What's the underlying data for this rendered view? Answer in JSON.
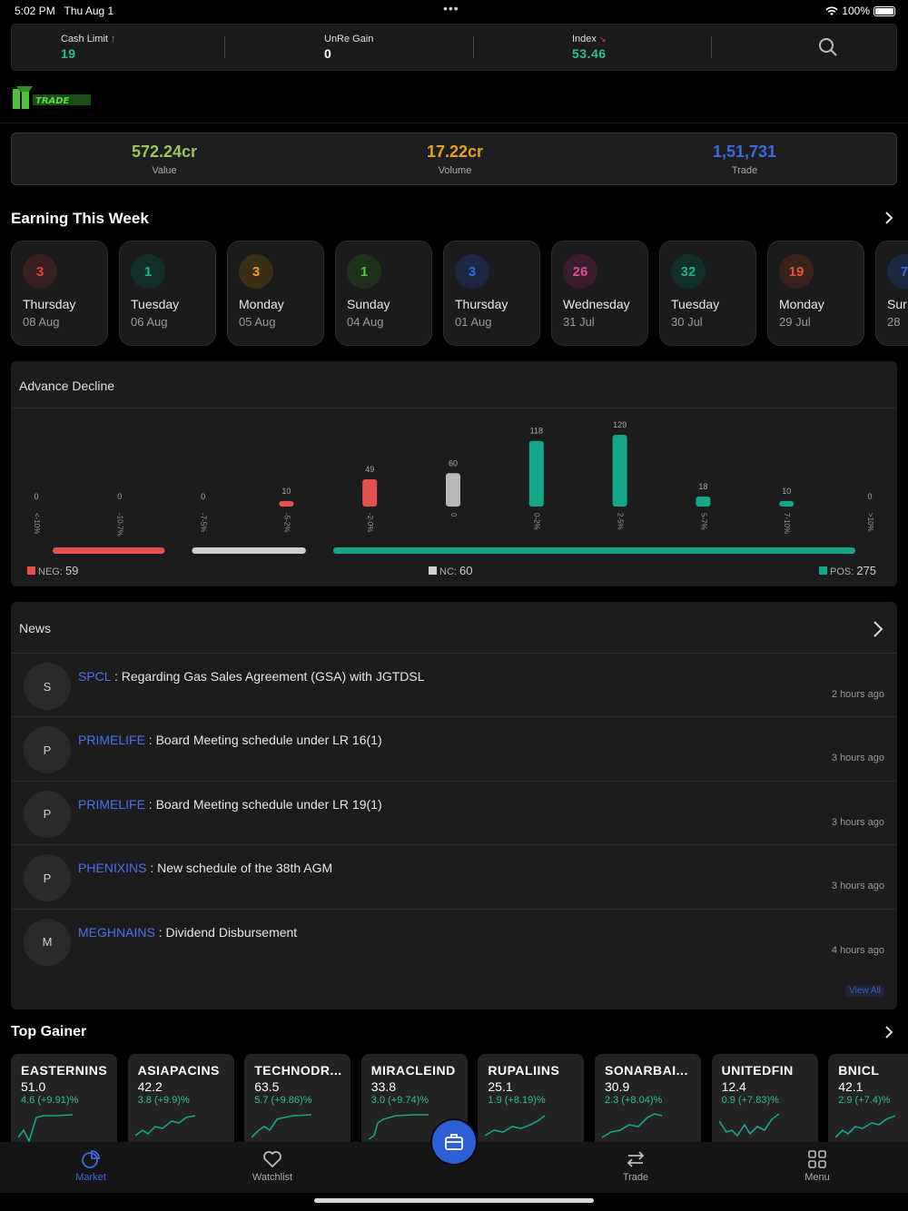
{
  "status": {
    "time": "5:02 PM",
    "date": "Thu Aug 1",
    "battery": "100%"
  },
  "topbar": {
    "cash_limit_label": "Cash Limit",
    "cash_limit_value": "19",
    "unre_gain_label": "UnRe Gain",
    "unre_gain_value": "0",
    "index_label": "Index",
    "index_value": "53.46"
  },
  "logo_text": "TRADE",
  "stats": {
    "value": "572.24cr",
    "value_label": "Value",
    "volume": "17.22cr",
    "volume_label": "Volume",
    "trade": "1,51,731",
    "trade_label": "Trade"
  },
  "earnings": {
    "title": "Earning This Week",
    "cards": [
      {
        "count": "3",
        "day": "Thursday",
        "date": "08 Aug",
        "color": "#e0463a",
        "bg": "#3a1f1f"
      },
      {
        "count": "1",
        "day": "Tuesday",
        "date": "06 Aug",
        "color": "#22b08a",
        "bg": "#12302a"
      },
      {
        "count": "3",
        "day": "Monday",
        "date": "05 Aug",
        "color": "#e8a21f",
        "bg": "#3a2e14"
      },
      {
        "count": "1",
        "day": "Sunday",
        "date": "04 Aug",
        "color": "#5cc24a",
        "bg": "#1d3319"
      },
      {
        "count": "3",
        "day": "Thursday",
        "date": "01 Aug",
        "color": "#3b6be0",
        "bg": "#1c2742"
      },
      {
        "count": "26",
        "day": "Wednesday",
        "date": "31 Jul",
        "color": "#d94f9b",
        "bg": "#3a1c2e"
      },
      {
        "count": "32",
        "day": "Tuesday",
        "date": "30 Jul",
        "color": "#22b08a",
        "bg": "#12302a"
      },
      {
        "count": "19",
        "day": "Monday",
        "date": "29 Jul",
        "color": "#e0563a",
        "bg": "#3a221c"
      },
      {
        "count": "7",
        "day": "Sur",
        "date": "28",
        "color": "#3b6be0",
        "bg": "#1c2742"
      }
    ]
  },
  "advance_decline": {
    "title": "Advance Decline",
    "neg_label": "NEG:",
    "neg_value": "59",
    "nc_label": "NC:",
    "nc_value": "60",
    "pos_label": "POS:",
    "pos_value": "275"
  },
  "chart_data": {
    "type": "bar",
    "categories": [
      "<-10%",
      "-10-7%",
      "-7-5%",
      "-5-2%",
      "-2-0%",
      "0",
      "0-2%",
      "2-5%",
      "5-7%",
      "7-10%",
      ">10%"
    ],
    "values": [
      0,
      0,
      0,
      10,
      49,
      60,
      118,
      129,
      18,
      10,
      0
    ],
    "colors": [
      "#e45151",
      "#e45151",
      "#e45151",
      "#e45151",
      "#e45151",
      "#b8b8b8",
      "#17a589",
      "#17a589",
      "#17a589",
      "#17a589",
      "#17a589"
    ]
  },
  "news": {
    "title": "News",
    "items": [
      {
        "avatar": "S",
        "symbol": "SPCL",
        "text": " : Regarding Gas Sales Agreement (GSA) with JGTDSL",
        "ago": "2 hours ago"
      },
      {
        "avatar": "P",
        "symbol": "PRIMELIFE",
        "text": " : Board Meeting schedule under LR 16(1)",
        "ago": "3 hours ago"
      },
      {
        "avatar": "P",
        "symbol": "PRIMELIFE",
        "text": " : Board Meeting schedule under LR 19(1)",
        "ago": "3 hours ago"
      },
      {
        "avatar": "P",
        "symbol": "PHENIXINS",
        "text": " : New schedule of the 38th AGM",
        "ago": "3 hours ago"
      },
      {
        "avatar": "M",
        "symbol": "MEGHNAINS",
        "text": " : Dividend Disbursement",
        "ago": "4 hours ago"
      }
    ],
    "view_all": "View All"
  },
  "top_gainer": {
    "title": "Top Gainer",
    "items": [
      {
        "symbol": "EASTERNINS",
        "price": "51.0",
        "change": "4.6 (+9.91)%"
      },
      {
        "symbol": "ASIAPACINS",
        "price": "42.2",
        "change": "3.8 (+9.9)%"
      },
      {
        "symbol": "TECHNODR...",
        "price": "63.5",
        "change": "5.7 (+9.86)%"
      },
      {
        "symbol": "MIRACLEIND",
        "price": "33.8",
        "change": "3.0 (+9.74)%"
      },
      {
        "symbol": "RUPALIINS",
        "price": "25.1",
        "change": "1.9 (+8.19)%"
      },
      {
        "symbol": "SONARBAI...",
        "price": "30.9",
        "change": "2.3 (+8.04)%"
      },
      {
        "symbol": "UNITEDFIN",
        "price": "12.4",
        "change": "0.9 (+7.83)%"
      },
      {
        "symbol": "BNICL",
        "price": "42.1",
        "change": "2.9 (+7.4)%"
      }
    ]
  },
  "nav": {
    "market": "Market",
    "watchlist": "Watchlist",
    "trade": "Trade",
    "menu": "Menu"
  }
}
